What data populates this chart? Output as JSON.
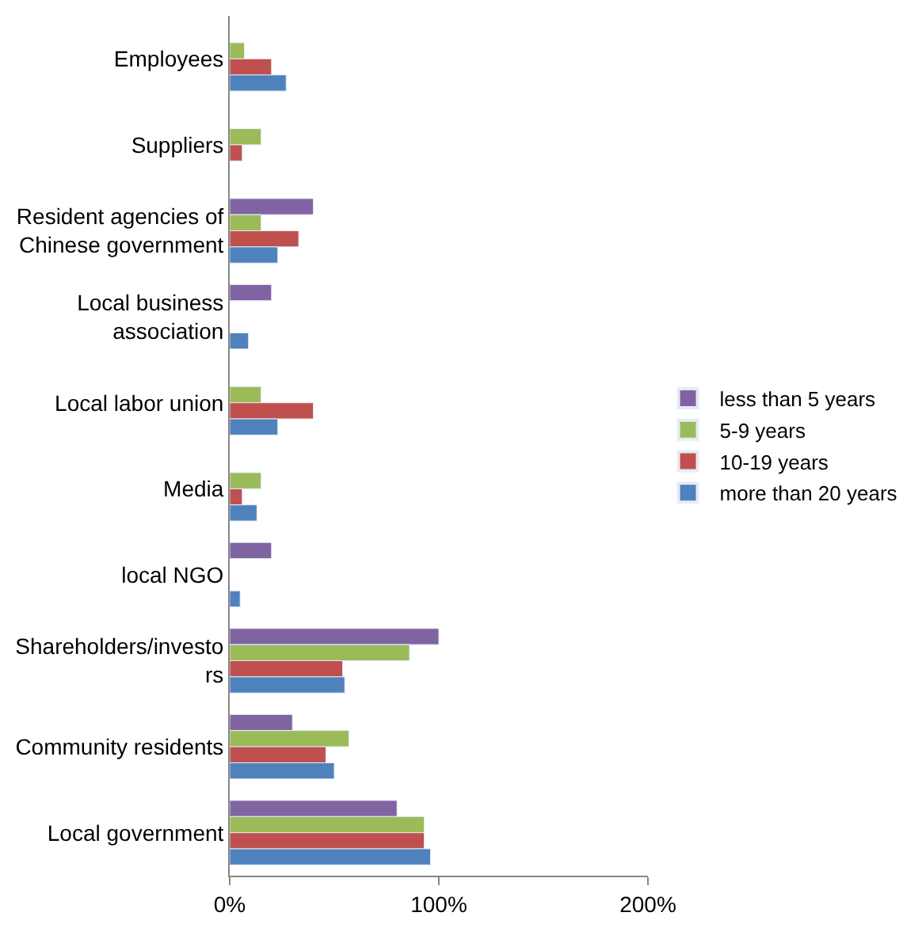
{
  "chart_data": {
    "type": "bar",
    "orientation": "horizontal",
    "categories": [
      "Employees",
      "Suppliers",
      "Resident agencies of Chinese government",
      "Local business association",
      "Local labor union",
      "Media",
      "local NGO",
      "Shareholders/investors",
      "Community residents",
      "Local government"
    ],
    "series": [
      {
        "name": "less than 5 years",
        "color": "#8064a2",
        "values": [
          null,
          null,
          40,
          20,
          null,
          null,
          20,
          100,
          30,
          80
        ]
      },
      {
        "name": "5-9 years",
        "color": "#9bbb59",
        "values": [
          7,
          15,
          15,
          null,
          15,
          15,
          null,
          86,
          57,
          93
        ]
      },
      {
        "name": "10-19 years",
        "color": "#c0504d",
        "values": [
          20,
          6,
          33,
          null,
          40,
          6,
          null,
          54,
          46,
          93
        ]
      },
      {
        "name": "more than 20 years",
        "color": "#4f81bd",
        "values": [
          27,
          null,
          23,
          9,
          23,
          13,
          5,
          55,
          50,
          96
        ]
      }
    ],
    "xlim": [
      0,
      200
    ],
    "xticks": [
      {
        "value": 0,
        "label": "0%"
      },
      {
        "value": 100,
        "label": "100%"
      },
      {
        "value": 200,
        "label": "200%"
      }
    ],
    "grid": false,
    "legend": "right"
  }
}
